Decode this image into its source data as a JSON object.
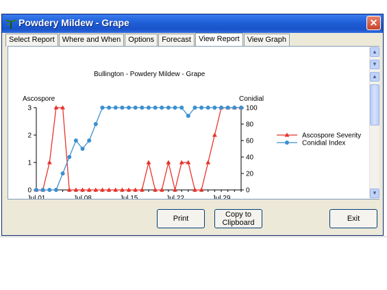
{
  "window": {
    "title": "Powdery Mildew - Grape",
    "close_glyph": "✕"
  },
  "tabs": [
    {
      "label": "Select Report"
    },
    {
      "label": "Where and When"
    },
    {
      "label": "Options"
    },
    {
      "label": "Forecast"
    },
    {
      "label": "View Report"
    },
    {
      "label": "View Graph"
    }
  ],
  "scrollbar": {
    "up_glyph": "▲",
    "down_glyph": "▼"
  },
  "buttons": {
    "print": "Print",
    "copy_line1": "Copy to",
    "copy_line2": "Clipboard",
    "exit": "Exit"
  },
  "colors": {
    "ascospore": "#e8322a",
    "conidial": "#3b8fd0"
  },
  "chart_data": {
    "type": "line",
    "title": "Bullington - Powdery Mildew - Grape",
    "left_axis_label": "Ascospore",
    "right_axis_label": "Conidial",
    "x_tick_labels": [
      "Jul 01",
      "Jul 08",
      "Jul 15",
      "Jul 22",
      "Jul 29"
    ],
    "x_tick_days": [
      1,
      8,
      15,
      22,
      29
    ],
    "left_ticks": [
      "0",
      "1",
      "2",
      "3"
    ],
    "right_ticks": [
      "0",
      "20",
      "40",
      "60",
      "80",
      "100"
    ],
    "ylim_left": [
      0,
      3
    ],
    "ylim_right": [
      0,
      100
    ],
    "xlim_days": [
      1,
      32
    ],
    "legend_position": "right",
    "series": [
      {
        "name": "Ascospore Severity",
        "axis": "left",
        "marker": "triangle",
        "x": [
          1,
          2,
          3,
          4,
          5,
          6,
          7,
          8,
          9,
          10,
          11,
          12,
          13,
          14,
          15,
          16,
          17,
          18,
          19,
          20,
          21,
          22,
          23,
          24,
          25,
          26,
          27,
          28,
          29,
          30,
          31,
          32
        ],
        "values": [
          0,
          0,
          1,
          3,
          3,
          0,
          0,
          0,
          0,
          0,
          0,
          0,
          0,
          0,
          0,
          0,
          0,
          1,
          0,
          0,
          1,
          0,
          1,
          1,
          0,
          0,
          1,
          2,
          3,
          3,
          3,
          3
        ]
      },
      {
        "name": "Conidial Index",
        "axis": "right",
        "marker": "circle",
        "x": [
          1,
          2,
          3,
          4,
          5,
          6,
          7,
          8,
          9,
          10,
          11,
          12,
          13,
          14,
          15,
          16,
          17,
          18,
          19,
          20,
          21,
          22,
          23,
          24,
          25,
          26,
          27,
          28,
          29,
          30,
          31,
          32
        ],
        "values": [
          0,
          0,
          0,
          0,
          20,
          40,
          60,
          50,
          60,
          80,
          100,
          100,
          100,
          100,
          100,
          100,
          100,
          100,
          100,
          100,
          100,
          100,
          100,
          90,
          100,
          100,
          100,
          100,
          100,
          100,
          100,
          100
        ]
      }
    ]
  }
}
